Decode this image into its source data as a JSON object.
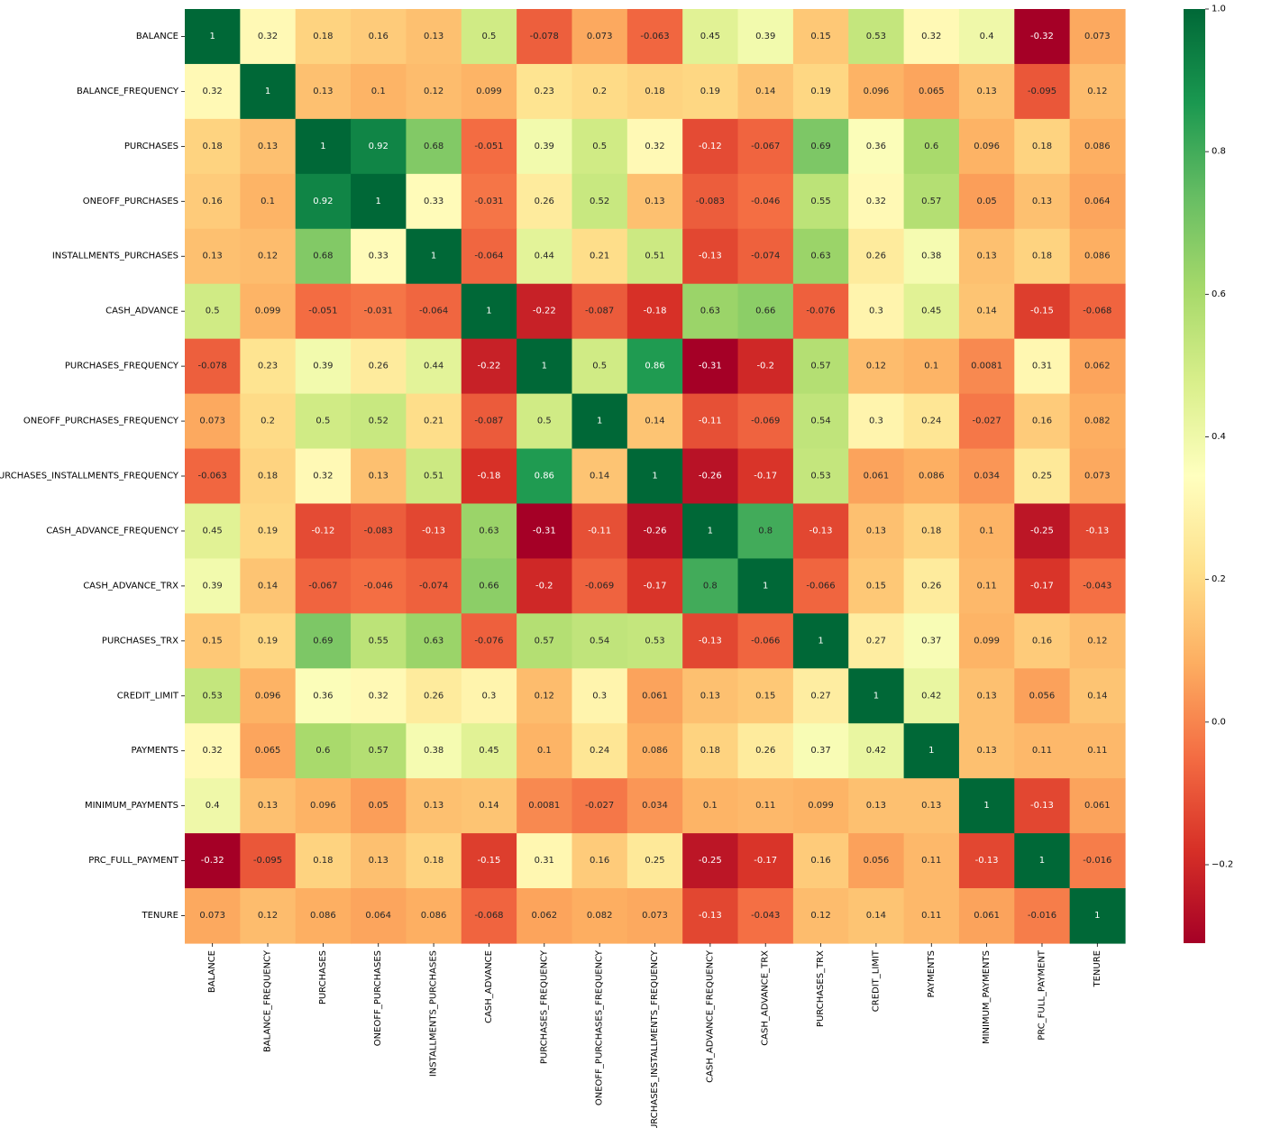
{
  "chart_data": {
    "type": "heatmap",
    "title": "",
    "xlabel": "",
    "ylabel": "",
    "colormap": "RdYlGn",
    "colormap_stops": [
      "#a50026",
      "#d73027",
      "#f46d43",
      "#fdae61",
      "#fee08b",
      "#ffffbf",
      "#d9ef8b",
      "#a6d96a",
      "#66bd63",
      "#1a9850",
      "#006837"
    ],
    "vmin": -0.31,
    "vmax": 1.0,
    "colorbar_ticks": [
      "1.0",
      "0.8",
      "0.6",
      "0.4",
      "0.2",
      "0.0",
      "−0.2"
    ],
    "colorbar_tick_values": [
      1.0,
      0.8,
      0.6,
      0.4,
      0.2,
      0.0,
      -0.2
    ],
    "labels": [
      "BALANCE",
      "BALANCE_FREQUENCY",
      "PURCHASES",
      "ONEOFF_PURCHASES",
      "INSTALLMENTS_PURCHASES",
      "CASH_ADVANCE",
      "PURCHASES_FREQUENCY",
      "ONEOFF_PURCHASES_FREQUENCY",
      "PURCHASES_INSTALLMENTS_FREQUENCY",
      "CASH_ADVANCE_FREQUENCY",
      "CASH_ADVANCE_TRX",
      "PURCHASES_TRX",
      "CREDIT_LIMIT",
      "PAYMENTS",
      "MINIMUM_PAYMENTS",
      "PRC_FULL_PAYMENT",
      "TENURE"
    ],
    "annotations": [
      [
        "1",
        "0.32",
        "0.18",
        "0.16",
        "0.13",
        "0.5",
        "-0.078",
        "0.073",
        "-0.063",
        "0.45",
        "0.39",
        "0.15",
        "0.53",
        "0.32",
        "0.4",
        "-0.32",
        "0.073"
      ],
      [
        "0.32",
        "1",
        "0.13",
        "0.1",
        "0.12",
        "0.099",
        "0.23",
        "0.2",
        "0.18",
        "0.19",
        "0.14",
        "0.19",
        "0.096",
        "0.065",
        "0.13",
        "-0.095",
        "0.12"
      ],
      [
        "0.18",
        "0.13",
        "1",
        "0.92",
        "0.68",
        "-0.051",
        "0.39",
        "0.5",
        "0.32",
        "-0.12",
        "-0.067",
        "0.69",
        "0.36",
        "0.6",
        "0.096",
        "0.18",
        "0.086"
      ],
      [
        "0.16",
        "0.1",
        "0.92",
        "1",
        "0.33",
        "-0.031",
        "0.26",
        "0.52",
        "0.13",
        "-0.083",
        "-0.046",
        "0.55",
        "0.32",
        "0.57",
        "0.05",
        "0.13",
        "0.064"
      ],
      [
        "0.13",
        "0.12",
        "0.68",
        "0.33",
        "1",
        "-0.064",
        "0.44",
        "0.21",
        "0.51",
        "-0.13",
        "-0.074",
        "0.63",
        "0.26",
        "0.38",
        "0.13",
        "0.18",
        "0.086"
      ],
      [
        "0.5",
        "0.099",
        "-0.051",
        "-0.031",
        "-0.064",
        "1",
        "-0.22",
        "-0.087",
        "-0.18",
        "0.63",
        "0.66",
        "-0.076",
        "0.3",
        "0.45",
        "0.14",
        "-0.15",
        "-0.068"
      ],
      [
        "-0.078",
        "0.23",
        "0.39",
        "0.26",
        "0.44",
        "-0.22",
        "1",
        "0.5",
        "0.86",
        "-0.31",
        "-0.2",
        "0.57",
        "0.12",
        "0.1",
        "0.0081",
        "0.31",
        "0.062"
      ],
      [
        "0.073",
        "0.2",
        "0.5",
        "0.52",
        "0.21",
        "-0.087",
        "0.5",
        "1",
        "0.14",
        "-0.11",
        "-0.069",
        "0.54",
        "0.3",
        "0.24",
        "-0.027",
        "0.16",
        "0.082"
      ],
      [
        "-0.063",
        "0.18",
        "0.32",
        "0.13",
        "0.51",
        "-0.18",
        "0.86",
        "0.14",
        "1",
        "-0.26",
        "-0.17",
        "0.53",
        "0.061",
        "0.086",
        "0.034",
        "0.25",
        "0.073"
      ],
      [
        "0.45",
        "0.19",
        "-0.12",
        "-0.083",
        "-0.13",
        "0.63",
        "-0.31",
        "-0.11",
        "-0.26",
        "1",
        "0.8",
        "-0.13",
        "0.13",
        "0.18",
        "0.1",
        "-0.25",
        "-0.13"
      ],
      [
        "0.39",
        "0.14",
        "-0.067",
        "-0.046",
        "-0.074",
        "0.66",
        "-0.2",
        "-0.069",
        "-0.17",
        "0.8",
        "1",
        "-0.066",
        "0.15",
        "0.26",
        "0.11",
        "-0.17",
        "-0.043"
      ],
      [
        "0.15",
        "0.19",
        "0.69",
        "0.55",
        "0.63",
        "-0.076",
        "0.57",
        "0.54",
        "0.53",
        "-0.13",
        "-0.066",
        "1",
        "0.27",
        "0.37",
        "0.099",
        "0.16",
        "0.12"
      ],
      [
        "0.53",
        "0.096",
        "0.36",
        "0.32",
        "0.26",
        "0.3",
        "0.12",
        "0.3",
        "0.061",
        "0.13",
        "0.15",
        "0.27",
        "1",
        "0.42",
        "0.13",
        "0.056",
        "0.14"
      ],
      [
        "0.32",
        "0.065",
        "0.6",
        "0.57",
        "0.38",
        "0.45",
        "0.1",
        "0.24",
        "0.086",
        "0.18",
        "0.26",
        "0.37",
        "0.42",
        "1",
        "0.13",
        "0.11",
        "0.11"
      ],
      [
        "0.4",
        "0.13",
        "0.096",
        "0.05",
        "0.13",
        "0.14",
        "0.0081",
        "-0.027",
        "0.034",
        "0.1",
        "0.11",
        "0.099",
        "0.13",
        "0.13",
        "1",
        "-0.13",
        "0.061"
      ],
      [
        "-0.32",
        "-0.095",
        "0.18",
        "0.13",
        "0.18",
        "-0.15",
        "0.31",
        "0.16",
        "0.25",
        "-0.25",
        "-0.17",
        "0.16",
        "0.056",
        "0.11",
        "-0.13",
        "1",
        "-0.016"
      ],
      [
        "0.073",
        "0.12",
        "0.086",
        "0.064",
        "0.086",
        "-0.068",
        "0.062",
        "0.082",
        "0.073",
        "-0.13",
        "-0.043",
        "0.12",
        "0.14",
        "0.11",
        "0.061",
        "-0.016",
        "1"
      ]
    ]
  }
}
